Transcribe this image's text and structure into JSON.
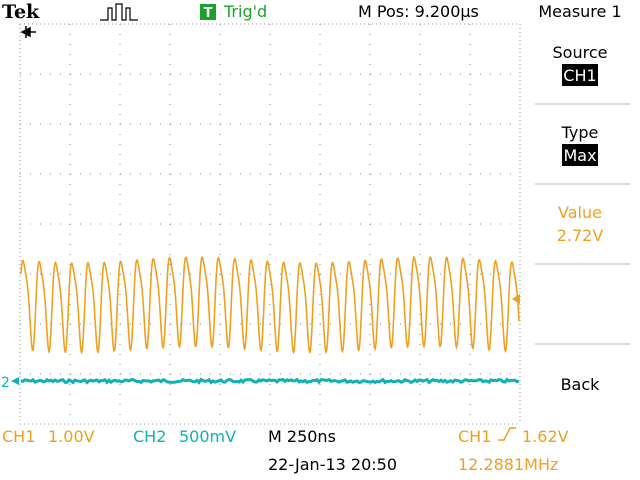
{
  "header": {
    "brand": "Tek",
    "trigger_icon": "T",
    "trigger_status": "Trig'd",
    "position": "M Pos: 9.200µs",
    "menu_title": "Measure 1"
  },
  "menu": [
    {
      "label": "Source",
      "value": "CH1"
    },
    {
      "label": "Type",
      "value": "Max"
    },
    {
      "label": "Value",
      "value": "2.72V"
    },
    {
      "label": "Back"
    }
  ],
  "markers": {
    "ch2": "2"
  },
  "footer": {
    "ch1_label": "CH1",
    "ch1_scale": "1.00V",
    "ch2_label": "CH2",
    "ch2_scale": "500mV",
    "timebase": "M 250ns",
    "trigger_source": "CH1",
    "trigger_level": "1.62V",
    "date": "22-Jan-13 20:50",
    "frequency": "12.2881MHz"
  }
}
